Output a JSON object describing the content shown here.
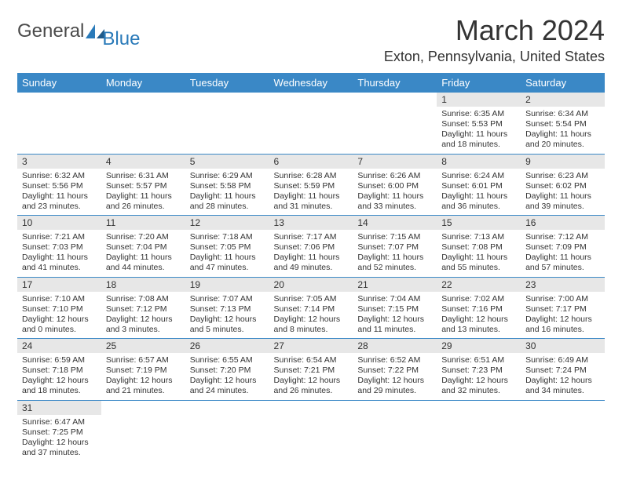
{
  "logo": {
    "text1": "General",
    "text2": "Blue"
  },
  "title": "March 2024",
  "location": "Exton, Pennsylvania, United States",
  "colors": {
    "header_bg": "#3a88c6",
    "header_fg": "#ffffff",
    "daynum_bg": "#e7e7e7",
    "text": "#333333",
    "row_border": "#3a88c6",
    "logo_accent": "#2a7ab9"
  },
  "day_headers": [
    "Sunday",
    "Monday",
    "Tuesday",
    "Wednesday",
    "Thursday",
    "Friday",
    "Saturday"
  ],
  "weeks": [
    [
      null,
      null,
      null,
      null,
      null,
      {
        "n": "1",
        "sunrise": "6:35 AM",
        "sunset": "5:53 PM",
        "day_h": "11",
        "day_m": "18"
      },
      {
        "n": "2",
        "sunrise": "6:34 AM",
        "sunset": "5:54 PM",
        "day_h": "11",
        "day_m": "20"
      }
    ],
    [
      {
        "n": "3",
        "sunrise": "6:32 AM",
        "sunset": "5:56 PM",
        "day_h": "11",
        "day_m": "23"
      },
      {
        "n": "4",
        "sunrise": "6:31 AM",
        "sunset": "5:57 PM",
        "day_h": "11",
        "day_m": "26"
      },
      {
        "n": "5",
        "sunrise": "6:29 AM",
        "sunset": "5:58 PM",
        "day_h": "11",
        "day_m": "28"
      },
      {
        "n": "6",
        "sunrise": "6:28 AM",
        "sunset": "5:59 PM",
        "day_h": "11",
        "day_m": "31"
      },
      {
        "n": "7",
        "sunrise": "6:26 AM",
        "sunset": "6:00 PM",
        "day_h": "11",
        "day_m": "33"
      },
      {
        "n": "8",
        "sunrise": "6:24 AM",
        "sunset": "6:01 PM",
        "day_h": "11",
        "day_m": "36"
      },
      {
        "n": "9",
        "sunrise": "6:23 AM",
        "sunset": "6:02 PM",
        "day_h": "11",
        "day_m": "39"
      }
    ],
    [
      {
        "n": "10",
        "sunrise": "7:21 AM",
        "sunset": "7:03 PM",
        "day_h": "11",
        "day_m": "41"
      },
      {
        "n": "11",
        "sunrise": "7:20 AM",
        "sunset": "7:04 PM",
        "day_h": "11",
        "day_m": "44"
      },
      {
        "n": "12",
        "sunrise": "7:18 AM",
        "sunset": "7:05 PM",
        "day_h": "11",
        "day_m": "47"
      },
      {
        "n": "13",
        "sunrise": "7:17 AM",
        "sunset": "7:06 PM",
        "day_h": "11",
        "day_m": "49"
      },
      {
        "n": "14",
        "sunrise": "7:15 AM",
        "sunset": "7:07 PM",
        "day_h": "11",
        "day_m": "52"
      },
      {
        "n": "15",
        "sunrise": "7:13 AM",
        "sunset": "7:08 PM",
        "day_h": "11",
        "day_m": "55"
      },
      {
        "n": "16",
        "sunrise": "7:12 AM",
        "sunset": "7:09 PM",
        "day_h": "11",
        "day_m": "57"
      }
    ],
    [
      {
        "n": "17",
        "sunrise": "7:10 AM",
        "sunset": "7:10 PM",
        "day_h": "12",
        "day_m": "0"
      },
      {
        "n": "18",
        "sunrise": "7:08 AM",
        "sunset": "7:12 PM",
        "day_h": "12",
        "day_m": "3"
      },
      {
        "n": "19",
        "sunrise": "7:07 AM",
        "sunset": "7:13 PM",
        "day_h": "12",
        "day_m": "5"
      },
      {
        "n": "20",
        "sunrise": "7:05 AM",
        "sunset": "7:14 PM",
        "day_h": "12",
        "day_m": "8"
      },
      {
        "n": "21",
        "sunrise": "7:04 AM",
        "sunset": "7:15 PM",
        "day_h": "12",
        "day_m": "11"
      },
      {
        "n": "22",
        "sunrise": "7:02 AM",
        "sunset": "7:16 PM",
        "day_h": "12",
        "day_m": "13"
      },
      {
        "n": "23",
        "sunrise": "7:00 AM",
        "sunset": "7:17 PM",
        "day_h": "12",
        "day_m": "16"
      }
    ],
    [
      {
        "n": "24",
        "sunrise": "6:59 AM",
        "sunset": "7:18 PM",
        "day_h": "12",
        "day_m": "18"
      },
      {
        "n": "25",
        "sunrise": "6:57 AM",
        "sunset": "7:19 PM",
        "day_h": "12",
        "day_m": "21"
      },
      {
        "n": "26",
        "sunrise": "6:55 AM",
        "sunset": "7:20 PM",
        "day_h": "12",
        "day_m": "24"
      },
      {
        "n": "27",
        "sunrise": "6:54 AM",
        "sunset": "7:21 PM",
        "day_h": "12",
        "day_m": "26"
      },
      {
        "n": "28",
        "sunrise": "6:52 AM",
        "sunset": "7:22 PM",
        "day_h": "12",
        "day_m": "29"
      },
      {
        "n": "29",
        "sunrise": "6:51 AM",
        "sunset": "7:23 PM",
        "day_h": "12",
        "day_m": "32"
      },
      {
        "n": "30",
        "sunrise": "6:49 AM",
        "sunset": "7:24 PM",
        "day_h": "12",
        "day_m": "34"
      }
    ],
    [
      {
        "n": "31",
        "sunrise": "6:47 AM",
        "sunset": "7:25 PM",
        "day_h": "12",
        "day_m": "37"
      },
      null,
      null,
      null,
      null,
      null,
      null
    ]
  ],
  "labels": {
    "sunrise": "Sunrise:",
    "sunset": "Sunset:",
    "daylight1": "Daylight:",
    "hours_word": "hours",
    "and_word": "and",
    "minutes_word": "minutes."
  }
}
